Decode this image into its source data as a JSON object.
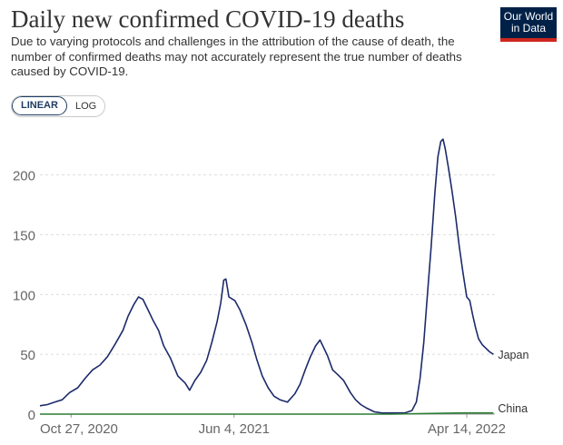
{
  "header": {
    "title": "Daily new confirmed COVID-19 deaths",
    "subtitle": "Due to varying protocols and challenges in the attribution of the cause of death, the number of confirmed deaths may not accurately represent the true number of deaths caused by COVID-19.",
    "logo_line1": "Our World",
    "logo_line2": "in Data"
  },
  "controls": {
    "linear_label": "LINEAR",
    "log_label": "LOG",
    "active": "linear"
  },
  "colors": {
    "japan": "#1d2a6b",
    "china": "#2a7d32",
    "grid": "#dddddd",
    "axis": "#666666",
    "logo_bg": "#002147",
    "logo_accent": "#ce261e"
  },
  "chart_data": {
    "type": "line",
    "title": "Daily new confirmed COVID-19 deaths",
    "x_axis_ticks": [
      "Oct 27, 2020",
      "Jun 4, 2021",
      "Apr 14, 2022"
    ],
    "x_range": [
      "2020-09-15",
      "2022-05-22"
    ],
    "ylim": [
      0,
      240
    ],
    "y_ticks": [
      0,
      50,
      100,
      150,
      200
    ],
    "grid": "horizontal dashed",
    "legend": "inline labels at line ends (right)",
    "series": [
      {
        "name": "Japan",
        "points": [
          [
            "2020-09-15",
            7
          ],
          [
            "2020-09-25",
            8
          ],
          [
            "2020-10-05",
            10
          ],
          [
            "2020-10-15",
            12
          ],
          [
            "2020-10-25",
            18
          ],
          [
            "2020-11-05",
            22
          ],
          [
            "2020-11-15",
            30
          ],
          [
            "2020-11-25",
            37
          ],
          [
            "2020-12-05",
            41
          ],
          [
            "2020-12-15",
            48
          ],
          [
            "2020-12-25",
            58
          ],
          [
            "2021-01-05",
            70
          ],
          [
            "2021-01-12",
            82
          ],
          [
            "2021-01-20",
            92
          ],
          [
            "2021-01-26",
            98
          ],
          [
            "2021-02-01",
            96
          ],
          [
            "2021-02-08",
            87
          ],
          [
            "2021-02-15",
            78
          ],
          [
            "2021-02-22",
            70
          ],
          [
            "2021-03-01",
            57
          ],
          [
            "2021-03-10",
            47
          ],
          [
            "2021-03-20",
            32
          ],
          [
            "2021-03-30",
            26
          ],
          [
            "2021-04-05",
            20
          ],
          [
            "2021-04-12",
            28
          ],
          [
            "2021-04-20",
            35
          ],
          [
            "2021-04-28",
            45
          ],
          [
            "2021-05-05",
            60
          ],
          [
            "2021-05-12",
            77
          ],
          [
            "2021-05-17",
            93
          ],
          [
            "2021-05-21",
            112
          ],
          [
            "2021-05-24",
            113
          ],
          [
            "2021-05-28",
            98
          ],
          [
            "2021-06-05",
            95
          ],
          [
            "2021-06-12",
            87
          ],
          [
            "2021-06-20",
            75
          ],
          [
            "2021-06-28",
            60
          ],
          [
            "2021-07-05",
            45
          ],
          [
            "2021-07-12",
            32
          ],
          [
            "2021-07-20",
            22
          ],
          [
            "2021-07-28",
            15
          ],
          [
            "2021-08-05",
            12
          ],
          [
            "2021-08-15",
            10
          ],
          [
            "2021-08-25",
            17
          ],
          [
            "2021-09-01",
            25
          ],
          [
            "2021-09-08",
            37
          ],
          [
            "2021-09-15",
            48
          ],
          [
            "2021-09-22",
            57
          ],
          [
            "2021-09-28",
            62
          ],
          [
            "2021-10-01",
            58
          ],
          [
            "2021-10-08",
            49
          ],
          [
            "2021-10-15",
            37
          ],
          [
            "2021-10-22",
            33
          ],
          [
            "2021-10-30",
            28
          ],
          [
            "2021-11-08",
            18
          ],
          [
            "2021-11-15",
            12
          ],
          [
            "2021-11-22",
            8
          ],
          [
            "2021-11-30",
            5
          ],
          [
            "2021-12-10",
            2
          ],
          [
            "2021-12-20",
            1
          ],
          [
            "2022-01-05",
            1
          ],
          [
            "2022-01-20",
            1
          ],
          [
            "2022-01-30",
            3
          ],
          [
            "2022-02-05",
            10
          ],
          [
            "2022-02-10",
            30
          ],
          [
            "2022-02-15",
            60
          ],
          [
            "2022-02-20",
            100
          ],
          [
            "2022-02-25",
            140
          ],
          [
            "2022-03-02",
            185
          ],
          [
            "2022-03-06",
            215
          ],
          [
            "2022-03-10",
            228
          ],
          [
            "2022-03-13",
            230
          ],
          [
            "2022-03-16",
            222
          ],
          [
            "2022-03-20",
            207
          ],
          [
            "2022-03-25",
            187
          ],
          [
            "2022-03-30",
            165
          ],
          [
            "2022-04-04",
            140
          ],
          [
            "2022-04-09",
            118
          ],
          [
            "2022-04-14",
            98
          ],
          [
            "2022-04-18",
            95
          ],
          [
            "2022-04-22",
            83
          ],
          [
            "2022-04-26",
            72
          ],
          [
            "2022-04-30",
            63
          ],
          [
            "2022-05-05",
            58
          ],
          [
            "2022-05-10",
            55
          ],
          [
            "2022-05-15",
            52
          ],
          [
            "2022-05-20",
            50
          ]
        ]
      },
      {
        "name": "China",
        "points": [
          [
            "2020-09-15",
            0
          ],
          [
            "2021-06-01",
            0
          ],
          [
            "2022-01-01",
            0
          ],
          [
            "2022-04-10",
            1
          ],
          [
            "2022-04-20",
            1
          ],
          [
            "2022-05-20",
            1
          ]
        ]
      }
    ]
  }
}
